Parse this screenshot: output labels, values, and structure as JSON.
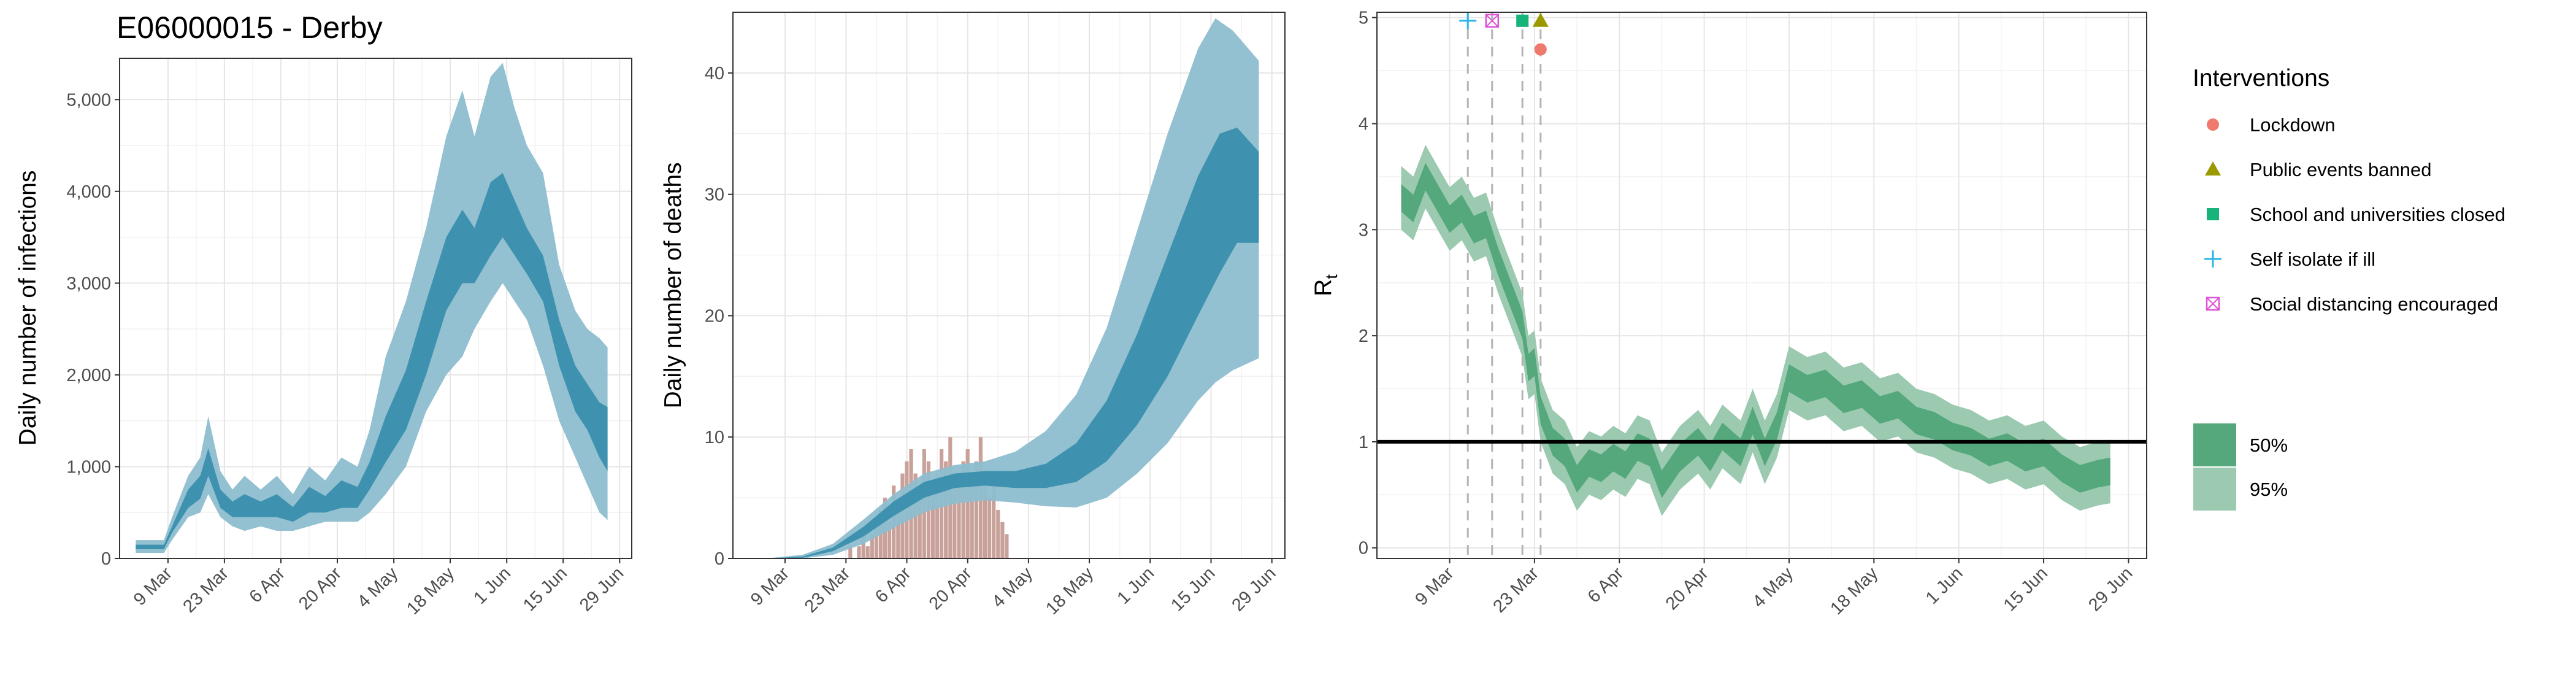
{
  "page_title": "E06000015 - Derby",
  "colors": {
    "band95_blue": "#8dbecf",
    "band50_blue": "#3f92af",
    "deaths_bars": "#c9a19b",
    "band95_green": "#9bcab0",
    "band50_green": "#55a87c",
    "lockdown": "#f0796e",
    "public_events": "#9a9a00",
    "schools": "#16b47a",
    "self_isolate": "#2ab6e6",
    "social_distancing": "#dd52d6"
  },
  "chart_data": [
    {
      "type": "area",
      "name": "infections",
      "xlabel": "",
      "ylabel": "Daily number of infections",
      "xlim": [
        "2020-02-26",
        "2020-07-02"
      ],
      "ylim": [
        0,
        5450
      ],
      "grid": true,
      "x_ticks": [
        "2020-03-09",
        "2020-03-23",
        "2020-04-06",
        "2020-04-20",
        "2020-05-04",
        "2020-05-18",
        "2020-06-01",
        "2020-06-15",
        "2020-06-29"
      ],
      "x_tick_labels": [
        "9 Mar",
        "23 Mar",
        "6 Apr",
        "20 Apr",
        "4 May",
        "18 May",
        "1 Jun",
        "15 Jun",
        "29 Jun"
      ],
      "y_ticks": [
        0,
        1000,
        2000,
        3000,
        4000,
        5000
      ],
      "y_tick_labels": [
        "0",
        "1,000",
        "2,000",
        "3,000",
        "4,000",
        "5,000"
      ],
      "band95": [
        [
          "2020-03-01",
          60,
          200
        ],
        [
          "2020-03-08",
          60,
          200
        ],
        [
          "2020-03-10",
          200,
          450
        ],
        [
          "2020-03-14",
          450,
          900
        ],
        [
          "2020-03-17",
          500,
          1100
        ],
        [
          "2020-03-19",
          700,
          1550
        ],
        [
          "2020-03-22",
          450,
          950
        ],
        [
          "2020-03-25",
          350,
          750
        ],
        [
          "2020-03-28",
          300,
          900
        ],
        [
          "2020-04-01",
          350,
          750
        ],
        [
          "2020-04-05",
          300,
          900
        ],
        [
          "2020-04-09",
          300,
          700
        ],
        [
          "2020-04-13",
          350,
          1000
        ],
        [
          "2020-04-17",
          400,
          850
        ],
        [
          "2020-04-21",
          400,
          1100
        ],
        [
          "2020-04-25",
          400,
          1000
        ],
        [
          "2020-04-28",
          500,
          1400
        ],
        [
          "2020-05-02",
          700,
          2200
        ],
        [
          "2020-05-07",
          1000,
          2800
        ],
        [
          "2020-05-12",
          1600,
          3600
        ],
        [
          "2020-05-17",
          2000,
          4600
        ],
        [
          "2020-05-21",
          2200,
          5100
        ],
        [
          "2020-05-24",
          2500,
          4600
        ],
        [
          "2020-05-28",
          2800,
          5250
        ],
        [
          "2020-05-31",
          3000,
          5400
        ],
        [
          "2020-06-03",
          2800,
          4900
        ],
        [
          "2020-06-06",
          2600,
          4500
        ],
        [
          "2020-06-10",
          2100,
          4200
        ],
        [
          "2020-06-14",
          1500,
          3200
        ],
        [
          "2020-06-18",
          1100,
          2700
        ],
        [
          "2020-06-21",
          800,
          2500
        ],
        [
          "2020-06-24",
          500,
          2400
        ],
        [
          "2020-06-26",
          420,
          2300
        ]
      ],
      "band50": [
        [
          "2020-03-01",
          100,
          150
        ],
        [
          "2020-03-08",
          100,
          150
        ],
        [
          "2020-03-10",
          280,
          350
        ],
        [
          "2020-03-14",
          550,
          750
        ],
        [
          "2020-03-17",
          650,
          900
        ],
        [
          "2020-03-19",
          900,
          1200
        ],
        [
          "2020-03-22",
          550,
          750
        ],
        [
          "2020-03-25",
          450,
          620
        ],
        [
          "2020-03-28",
          450,
          700
        ],
        [
          "2020-04-01",
          450,
          620
        ],
        [
          "2020-04-05",
          450,
          700
        ],
        [
          "2020-04-09",
          400,
          560
        ],
        [
          "2020-04-13",
          500,
          780
        ],
        [
          "2020-04-17",
          500,
          680
        ],
        [
          "2020-04-21",
          550,
          850
        ],
        [
          "2020-04-25",
          550,
          780
        ],
        [
          "2020-04-28",
          750,
          1050
        ],
        [
          "2020-05-02",
          1050,
          1550
        ],
        [
          "2020-05-07",
          1400,
          2050
        ],
        [
          "2020-05-12",
          2000,
          2800
        ],
        [
          "2020-05-17",
          2700,
          3500
        ],
        [
          "2020-05-21",
          3000,
          3800
        ],
        [
          "2020-05-24",
          3000,
          3600
        ],
        [
          "2020-05-28",
          3300,
          4100
        ],
        [
          "2020-05-31",
          3500,
          4200
        ],
        [
          "2020-06-03",
          3300,
          3900
        ],
        [
          "2020-06-06",
          3100,
          3600
        ],
        [
          "2020-06-10",
          2800,
          3300
        ],
        [
          "2020-06-14",
          2100,
          2600
        ],
        [
          "2020-06-18",
          1600,
          2100
        ],
        [
          "2020-06-21",
          1400,
          1900
        ],
        [
          "2020-06-24",
          1100,
          1700
        ],
        [
          "2020-06-26",
          950,
          1650
        ]
      ]
    },
    {
      "type": "area",
      "name": "deaths",
      "xlabel": "",
      "ylabel": "Daily number of deaths",
      "xlim": [
        "2020-02-26",
        "2020-07-02"
      ],
      "ylim": [
        0,
        45
      ],
      "grid": true,
      "x_ticks": [
        "2020-03-09",
        "2020-03-23",
        "2020-04-06",
        "2020-04-20",
        "2020-05-04",
        "2020-05-18",
        "2020-06-01",
        "2020-06-15",
        "2020-06-29"
      ],
      "x_tick_labels": [
        "9 Mar",
        "23 Mar",
        "6 Apr",
        "20 Apr",
        "4 May",
        "18 May",
        "1 Jun",
        "15 Jun",
        "29 Jun"
      ],
      "y_ticks": [
        0,
        10,
        20,
        30,
        40
      ],
      "y_tick_labels": [
        "0",
        "10",
        "20",
        "30",
        "40"
      ],
      "bar_start": "2020-03-24",
      "observed_deaths": [
        1,
        0,
        1,
        2,
        1,
        2,
        3,
        4,
        5,
        3,
        6,
        5,
        7,
        8,
        9,
        7,
        6,
        9,
        8,
        6,
        7,
        9,
        8,
        10,
        7,
        6,
        8,
        9,
        7,
        8,
        10,
        6,
        5,
        7,
        4,
        3,
        2
      ],
      "band95": [
        [
          "2020-03-06",
          0,
          0.05
        ],
        [
          "2020-03-13",
          0,
          0.3
        ],
        [
          "2020-03-20",
          0.3,
          1.2
        ],
        [
          "2020-03-27",
          1.2,
          3.2
        ],
        [
          "2020-04-03",
          2.5,
          5.3
        ],
        [
          "2020-04-10",
          3.8,
          7.0
        ],
        [
          "2020-04-17",
          4.5,
          7.7
        ],
        [
          "2020-04-24",
          4.8,
          8.0
        ],
        [
          "2020-05-01",
          4.6,
          8.8
        ],
        [
          "2020-05-08",
          4.3,
          10.5
        ],
        [
          "2020-05-15",
          4.2,
          13.5
        ],
        [
          "2020-05-22",
          5.0,
          19.0
        ],
        [
          "2020-05-29",
          7.0,
          27.0
        ],
        [
          "2020-06-05",
          9.5,
          35.0
        ],
        [
          "2020-06-12",
          13.0,
          42.0
        ],
        [
          "2020-06-16",
          14.5,
          44.5
        ],
        [
          "2020-06-20",
          15.5,
          43.5
        ],
        [
          "2020-06-26",
          16.5,
          41.0
        ]
      ],
      "band50": [
        [
          "2020-03-06",
          0,
          0.02
        ],
        [
          "2020-03-13",
          0.05,
          0.15
        ],
        [
          "2020-03-20",
          0.6,
          0.9
        ],
        [
          "2020-03-27",
          1.8,
          2.6
        ],
        [
          "2020-04-03",
          3.5,
          4.7
        ],
        [
          "2020-04-10",
          5.0,
          6.3
        ],
        [
          "2020-04-17",
          5.8,
          7.0
        ],
        [
          "2020-04-24",
          6.0,
          7.2
        ],
        [
          "2020-05-01",
          5.8,
          7.2
        ],
        [
          "2020-05-08",
          5.8,
          7.8
        ],
        [
          "2020-05-15",
          6.3,
          9.5
        ],
        [
          "2020-05-22",
          8.0,
          13.0
        ],
        [
          "2020-05-29",
          11.0,
          18.5
        ],
        [
          "2020-06-05",
          15.0,
          25.0
        ],
        [
          "2020-06-12",
          20.0,
          31.5
        ],
        [
          "2020-06-17",
          23.5,
          35.0
        ],
        [
          "2020-06-21",
          26.0,
          35.5
        ],
        [
          "2020-06-26",
          26.0,
          33.5
        ]
      ]
    },
    {
      "type": "area",
      "name": "rt",
      "xlabel": "",
      "ylabel": "R",
      "ylabel_subscript": "t",
      "xlim": [
        "2020-02-26",
        "2020-07-02"
      ],
      "ylim": [
        -0.1,
        5.05
      ],
      "grid": true,
      "x_ticks": [
        "2020-03-09",
        "2020-03-23",
        "2020-04-06",
        "2020-04-20",
        "2020-05-04",
        "2020-05-18",
        "2020-06-01",
        "2020-06-15",
        "2020-06-29"
      ],
      "x_tick_labels": [
        "9 Mar",
        "23 Mar",
        "6 Apr",
        "20 Apr",
        "4 May",
        "18 May",
        "1 Jun",
        "15 Jun",
        "29 Jun"
      ],
      "y_ticks": [
        0,
        1,
        2,
        3,
        4,
        5
      ],
      "y_tick_labels": [
        "0",
        "1",
        "2",
        "3",
        "4",
        "5"
      ],
      "reference_line": 1,
      "intervention_dates": [
        "2020-03-12",
        "2020-03-16",
        "2020-03-21",
        "2020-03-24"
      ],
      "intervention_markers": [
        {
          "key": "self_isolate",
          "date": "2020-03-12",
          "y": 4.97
        },
        {
          "key": "social_distancing",
          "date": "2020-03-16",
          "y": 4.97
        },
        {
          "key": "schools",
          "date": "2020-03-21",
          "y": 4.97
        },
        {
          "key": "public_events",
          "date": "2020-03-24",
          "y": 4.97
        },
        {
          "key": "lockdown",
          "date": "2020-03-24",
          "y": 4.7
        }
      ],
      "median": [
        [
          "2020-03-01",
          3.3
        ],
        [
          "2020-03-03",
          3.2
        ],
        [
          "2020-03-05",
          3.5
        ],
        [
          "2020-03-07",
          3.3
        ],
        [
          "2020-03-09",
          3.1
        ],
        [
          "2020-03-11",
          3.2
        ],
        [
          "2020-03-13",
          3.0
        ],
        [
          "2020-03-15",
          3.05
        ],
        [
          "2020-03-17",
          2.7
        ],
        [
          "2020-03-19",
          2.4
        ],
        [
          "2020-03-21",
          2.1
        ],
        [
          "2020-03-22",
          1.7
        ],
        [
          "2020-03-23",
          1.75
        ],
        [
          "2020-03-24",
          1.3
        ],
        [
          "2020-03-26",
          1.0
        ],
        [
          "2020-03-28",
          0.9
        ],
        [
          "2020-03-30",
          0.65
        ],
        [
          "2020-04-01",
          0.8
        ],
        [
          "2020-04-03",
          0.75
        ],
        [
          "2020-04-05",
          0.85
        ],
        [
          "2020-04-07",
          0.78
        ],
        [
          "2020-04-09",
          0.95
        ],
        [
          "2020-04-11",
          0.9
        ],
        [
          "2020-04-13",
          0.6
        ],
        [
          "2020-04-16",
          0.85
        ],
        [
          "2020-04-19",
          1.0
        ],
        [
          "2020-04-21",
          0.85
        ],
        [
          "2020-04-23",
          1.05
        ],
        [
          "2020-04-26",
          0.9
        ],
        [
          "2020-04-28",
          1.2
        ],
        [
          "2020-04-30",
          0.9
        ],
        [
          "2020-05-02",
          1.15
        ],
        [
          "2020-05-04",
          1.6
        ],
        [
          "2020-05-07",
          1.5
        ],
        [
          "2020-05-10",
          1.55
        ],
        [
          "2020-05-13",
          1.4
        ],
        [
          "2020-05-16",
          1.45
        ],
        [
          "2020-05-19",
          1.3
        ],
        [
          "2020-05-22",
          1.35
        ],
        [
          "2020-05-25",
          1.2
        ],
        [
          "2020-05-28",
          1.15
        ],
        [
          "2020-05-31",
          1.05
        ],
        [
          "2020-06-03",
          1.0
        ],
        [
          "2020-06-06",
          0.9
        ],
        [
          "2020-06-09",
          0.95
        ],
        [
          "2020-06-12",
          0.85
        ],
        [
          "2020-06-15",
          0.9
        ],
        [
          "2020-06-18",
          0.75
        ],
        [
          "2020-06-21",
          0.65
        ],
        [
          "2020-06-24",
          0.7
        ],
        [
          "2020-06-26",
          0.72
        ]
      ],
      "band50_halfwidth": 0.13,
      "band95_halfwidth": 0.3,
      "legend": {
        "title": "Interventions",
        "items": [
          {
            "key": "lockdown",
            "label": "Lockdown"
          },
          {
            "key": "public_events",
            "label": "Public events banned"
          },
          {
            "key": "schools",
            "label": "School and universities closed"
          },
          {
            "key": "self_isolate",
            "label": "Self isolate if ill"
          },
          {
            "key": "social_distancing",
            "label": "Social distancing encouraged"
          }
        ],
        "bands": [
          {
            "key": "band50_green",
            "label": "50%"
          },
          {
            "key": "band95_green",
            "label": "95%"
          }
        ]
      }
    }
  ]
}
